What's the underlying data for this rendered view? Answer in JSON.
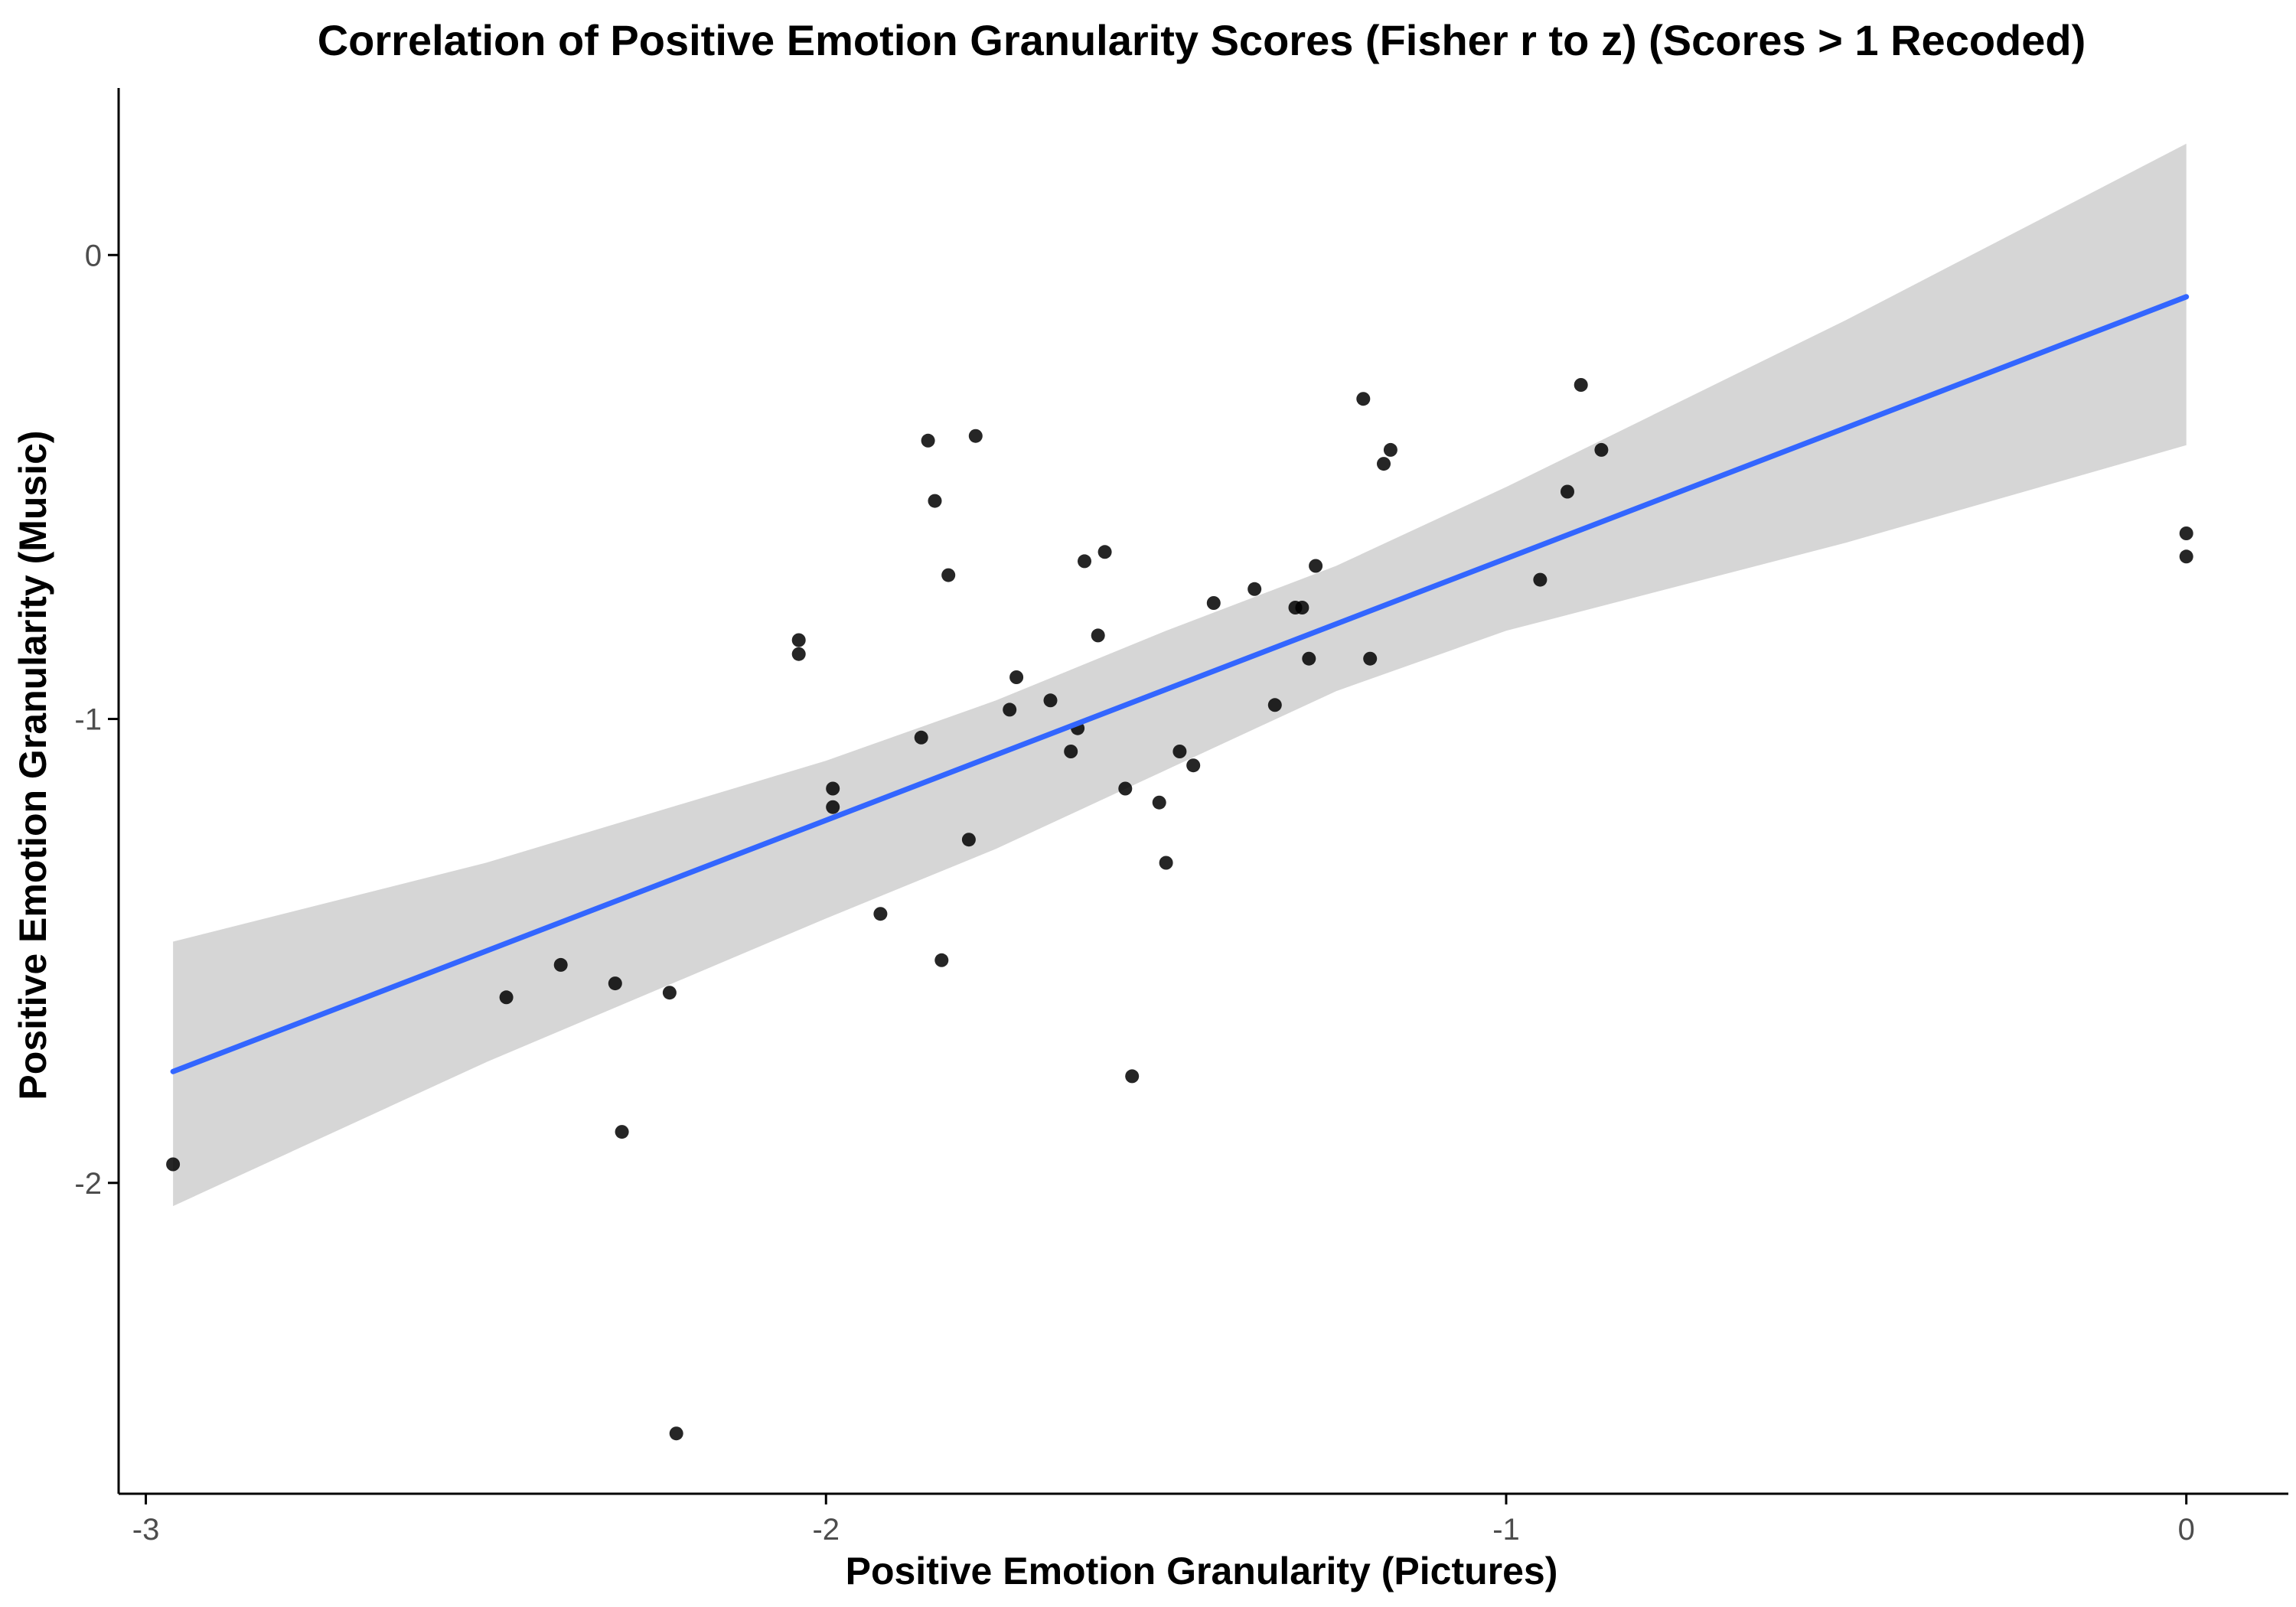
{
  "chart_data": {
    "type": "scatter",
    "title": "Correlation of Positive Emotion Granularity Scores (Fisher r to z) (Scores > 1 Recoded)",
    "xlabel": "Positive Emotion Granularity (Pictures)",
    "ylabel": "Positive Emotion Granularity (Music)",
    "xlim": [
      -3.04,
      0.15
    ],
    "ylim": [
      -2.67,
      0.36
    ],
    "x_ticks": [
      -3,
      -2,
      -1,
      0
    ],
    "y_ticks": [
      -2,
      -1,
      0
    ],
    "x_tick_labels": [
      "-3",
      "-2",
      "-1",
      "0"
    ],
    "y_tick_labels": [
      "-2",
      "-1",
      "0"
    ],
    "grid": false,
    "points": [
      {
        "x": -2.96,
        "y": -1.96
      },
      {
        "x": -2.47,
        "y": -1.6
      },
      {
        "x": -2.39,
        "y": -1.53
      },
      {
        "x": -2.31,
        "y": -1.57
      },
      {
        "x": -2.3,
        "y": -1.89
      },
      {
        "x": -2.23,
        "y": -1.59
      },
      {
        "x": -2.22,
        "y": -2.54
      },
      {
        "x": -2.04,
        "y": -0.83
      },
      {
        "x": -2.04,
        "y": -0.86
      },
      {
        "x": -1.99,
        "y": -1.15
      },
      {
        "x": -1.99,
        "y": -1.19
      },
      {
        "x": -1.92,
        "y": -1.42
      },
      {
        "x": -1.86,
        "y": -1.04
      },
      {
        "x": -1.85,
        "y": -0.4
      },
      {
        "x": -1.84,
        "y": -0.53
      },
      {
        "x": -1.83,
        "y": -1.52
      },
      {
        "x": -1.82,
        "y": -0.69
      },
      {
        "x": -1.79,
        "y": -1.26
      },
      {
        "x": -1.78,
        "y": -0.39
      },
      {
        "x": -1.73,
        "y": -0.98
      },
      {
        "x": -1.72,
        "y": -0.91
      },
      {
        "x": -1.67,
        "y": -0.96
      },
      {
        "x": -1.64,
        "y": -1.07
      },
      {
        "x": -1.63,
        "y": -1.02
      },
      {
        "x": -1.62,
        "y": -0.66
      },
      {
        "x": -1.6,
        "y": -0.82
      },
      {
        "x": -1.59,
        "y": -0.64
      },
      {
        "x": -1.56,
        "y": -1.15
      },
      {
        "x": -1.55,
        "y": -1.77
      },
      {
        "x": -1.51,
        "y": -1.18
      },
      {
        "x": -1.5,
        "y": -1.31
      },
      {
        "x": -1.48,
        "y": -1.07
      },
      {
        "x": -1.46,
        "y": -1.1
      },
      {
        "x": -1.43,
        "y": -0.75
      },
      {
        "x": -1.37,
        "y": -0.72
      },
      {
        "x": -1.34,
        "y": -0.97
      },
      {
        "x": -1.31,
        "y": -0.76
      },
      {
        "x": -1.3,
        "y": -0.76
      },
      {
        "x": -1.29,
        "y": -0.87
      },
      {
        "x": -1.28,
        "y": -0.67
      },
      {
        "x": -1.21,
        "y": -0.31
      },
      {
        "x": -1.2,
        "y": -0.87
      },
      {
        "x": -1.18,
        "y": -0.45
      },
      {
        "x": -1.17,
        "y": -0.42
      },
      {
        "x": -0.95,
        "y": -0.7
      },
      {
        "x": -0.91,
        "y": -0.51
      },
      {
        "x": -0.89,
        "y": -0.28
      },
      {
        "x": -0.86,
        "y": -0.42
      },
      {
        "x": 0.0,
        "y": -0.6
      },
      {
        "x": 0.0,
        "y": -0.65
      }
    ],
    "fit_line": {
      "x": [
        -2.96,
        0.0
      ],
      "y": [
        -1.76,
        -0.09
      ]
    },
    "confidence_band": {
      "x": [
        -2.96,
        -2.5,
        -2.0,
        -1.75,
        -1.5,
        -1.25,
        -1.0,
        -0.5,
        0.0
      ],
      "lower": [
        -2.05,
        -1.74,
        -1.43,
        -1.28,
        -1.11,
        -0.94,
        -0.81,
        -0.62,
        -0.41
      ],
      "upper": [
        -1.48,
        -1.31,
        -1.09,
        -0.96,
        -0.81,
        -0.67,
        -0.5,
        -0.14,
        0.24
      ]
    },
    "colors": {
      "points": "#000000",
      "fit_line": "#3366ff",
      "band": "#d6d6d6",
      "axis": "#000000",
      "tick_label": "#4d4d4d"
    }
  }
}
